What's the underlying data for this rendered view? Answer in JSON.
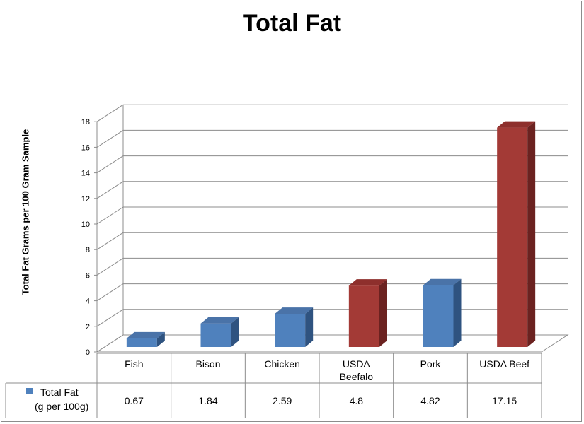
{
  "chart_data": {
    "type": "bar",
    "title": "Total Fat",
    "ylabel": "Total Fat Grams per 100 Gram Sample",
    "xlabel": "",
    "ylim": [
      0,
      18
    ],
    "yticks": [
      0,
      2,
      4,
      6,
      8,
      10,
      12,
      14,
      16,
      18
    ],
    "categories": [
      "Fish",
      "Bison",
      "Chicken",
      "USDA Beefalo",
      "Pork",
      "USDA Beef"
    ],
    "series": [
      {
        "name": "Total Fat (g per 100g)",
        "values": [
          0.67,
          1.84,
          2.59,
          4.8,
          4.82,
          17.15
        ],
        "value_labels": [
          "0.67",
          "1.84",
          "2.59",
          "4.8",
          "4.82",
          "17.15"
        ]
      }
    ],
    "legend": {
      "label_line1": "Total Fat",
      "label_line2": "(g per 100g)",
      "placement": "data-table"
    },
    "grid": true,
    "colors": {
      "default_bar": "#4f81bd",
      "highlight_bar": "#a33a36",
      "highlighted_categories": [
        "USDA Beefalo",
        "USDA Beef"
      ]
    }
  }
}
